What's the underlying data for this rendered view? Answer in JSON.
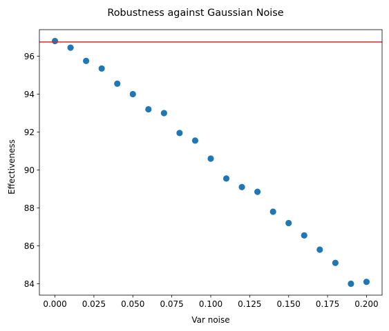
{
  "chart_data": {
    "type": "scatter",
    "title": "Robustness against Gaussian Noise",
    "xlabel": "Var noise",
    "ylabel": "Effectiveness",
    "xlim": [
      -0.01,
      0.21
    ],
    "ylim": [
      83.4,
      97.4
    ],
    "xticks": [
      0.0,
      0.025,
      0.05,
      0.075,
      0.1,
      0.125,
      0.15,
      0.175,
      0.2
    ],
    "xtick_labels": [
      "0.000",
      "0.025",
      "0.050",
      "0.075",
      "0.100",
      "0.125",
      "0.150",
      "0.175",
      "0.200"
    ],
    "yticks": [
      84,
      86,
      88,
      90,
      92,
      94,
      96
    ],
    "ytick_labels": [
      "84",
      "86",
      "88",
      "90",
      "92",
      "94",
      "96"
    ],
    "grid": false,
    "series": [
      {
        "color": "#1f77b4",
        "x": [
          0.0,
          0.01,
          0.02,
          0.03,
          0.04,
          0.05,
          0.06,
          0.07,
          0.08,
          0.09,
          0.1,
          0.11,
          0.12,
          0.13,
          0.14,
          0.15,
          0.16,
          0.17,
          0.18,
          0.19,
          0.2
        ],
        "y": [
          96.8,
          96.45,
          95.75,
          95.35,
          94.55,
          94.0,
          93.2,
          93.0,
          91.95,
          91.55,
          90.6,
          89.55,
          89.1,
          88.85,
          87.8,
          87.2,
          86.55,
          85.8,
          85.1,
          84.0,
          84.1
        ]
      }
    ],
    "reference_line": {
      "orientation": "horizontal",
      "y": 96.75,
      "color": "#d62728"
    }
  }
}
